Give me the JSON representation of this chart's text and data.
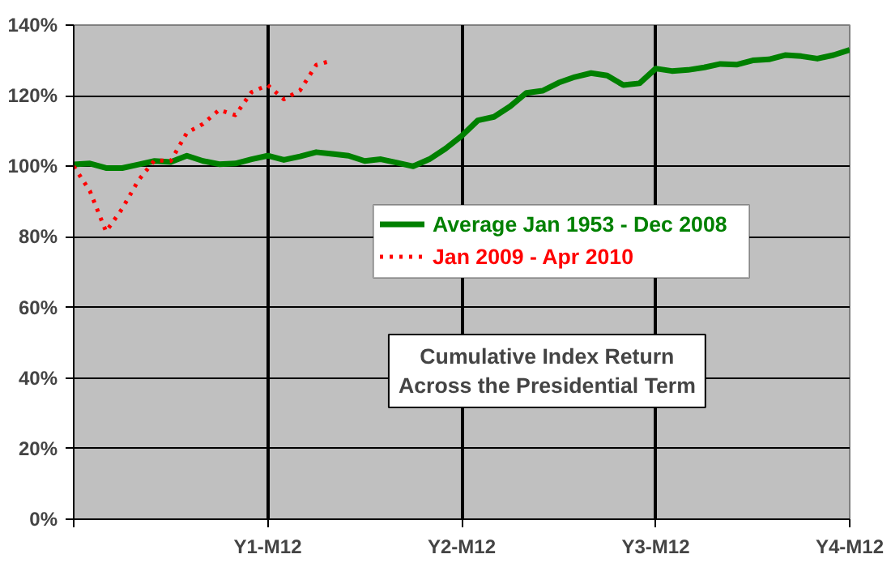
{
  "chart_data": {
    "type": "line",
    "title": "Cumulative Index Return\nAcross the Presidential Term",
    "categories": [
      null,
      null,
      null,
      null,
      null,
      null,
      null,
      null,
      null,
      null,
      null,
      null,
      "Y1-M12",
      null,
      null,
      null,
      null,
      null,
      null,
      null,
      null,
      null,
      null,
      null,
      "Y2-M12",
      null,
      null,
      null,
      null,
      null,
      null,
      null,
      null,
      null,
      null,
      null,
      "Y3-M12",
      null,
      null,
      null,
      null,
      null,
      null,
      null,
      null,
      null,
      null,
      null,
      "Y4-M12"
    ],
    "ylim": [
      0,
      140
    ],
    "yticks": [
      {
        "value": 0,
        "label": "0%"
      },
      {
        "value": 20,
        "label": "20%"
      },
      {
        "value": 40,
        "label": "40%"
      },
      {
        "value": 60,
        "label": "60%"
      },
      {
        "value": 80,
        "label": "80%"
      },
      {
        "value": 100,
        "label": "100%"
      },
      {
        "value": 120,
        "label": "120%"
      },
      {
        "value": 140,
        "label": "140%"
      }
    ],
    "grid": true,
    "legend": "right",
    "marker": "none",
    "series": [
      {
        "name": "Average Jan 1953 - Dec 2008",
        "color": "#008000",
        "line_style": "solid",
        "values": [
          100.5,
          100.8,
          99.5,
          99.5,
          100.5,
          101.5,
          101.2,
          103,
          101.5,
          100.6,
          100.8,
          102,
          103,
          101.8,
          102.8,
          104,
          103.5,
          103,
          101.5,
          102,
          101,
          100,
          102,
          105,
          108.6,
          113,
          114,
          117,
          120.8,
          121.4,
          123.7,
          125.3,
          126.4,
          125.7,
          123,
          123.5,
          127.7,
          127,
          127.3,
          128,
          129,
          128.8,
          130,
          130.3,
          131.5,
          131.2,
          130.5,
          131.5,
          133
        ]
      },
      {
        "name": "Jan 2009 - Apr 2010",
        "color": "#ff0000",
        "line_style": "dotted",
        "values": [
          100,
          93,
          81.5,
          88,
          96,
          101.7,
          101.5,
          109.5,
          112,
          116,
          114.5,
          121,
          123,
          119,
          121.5,
          128.7,
          130,
          null,
          null,
          null,
          null,
          null,
          null,
          null,
          null,
          null,
          null,
          null,
          null,
          null,
          null,
          null,
          null,
          null,
          null,
          null,
          null,
          null,
          null,
          null,
          null,
          null,
          null,
          null,
          null,
          null,
          null,
          null,
          null
        ]
      }
    ]
  }
}
